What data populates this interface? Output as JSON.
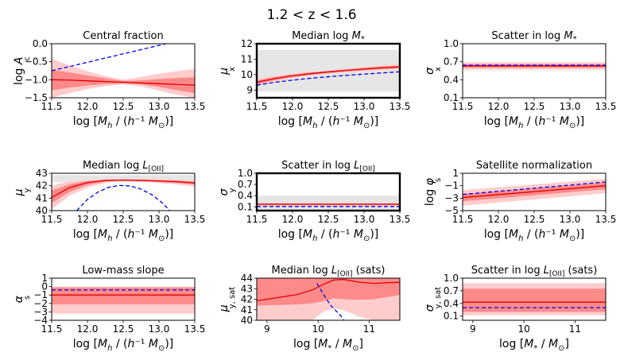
{
  "figure": {
    "suptitle": "1.2 < z < 1.6",
    "colors": {
      "median_line": "#e00000",
      "band_inner": "#ff8a8a",
      "band_outer": "#ffcccc",
      "prior_band": "#e6e6e6",
      "reference_line": "#0000ee"
    }
  },
  "chart_data": [
    {
      "type": "line",
      "id": "central_fraction",
      "title": "Central fraction",
      "ylabel": "log A_c",
      "xlabel": "log [M_h / (h⁻¹ M_⊙)]",
      "xlim": [
        11.5,
        13.5
      ],
      "ylim": [
        -1.5,
        0.0
      ],
      "xticks": [
        11.5,
        12.0,
        12.5,
        13.0,
        13.5
      ],
      "xticklabels": [
        "11.5",
        "12.0",
        "12.5",
        "13.0",
        "13.5"
      ],
      "yticks": [
        -1.5,
        -1.0,
        -0.5,
        0.0
      ],
      "yticklabels": [
        "−1.5",
        "−1.0",
        "−0.5",
        "0.0"
      ],
      "x": [
        11.5,
        11.75,
        12.0,
        12.25,
        12.5,
        12.75,
        13.0,
        13.25,
        13.5
      ],
      "median": [
        -1.0,
        -1.01,
        -1.03,
        -1.05,
        -1.07,
        -1.09,
        -1.11,
        -1.13,
        -1.15
      ],
      "inner_band": {
        "lower": [
          -1.3,
          -1.22,
          -1.16,
          -1.12,
          -1.1,
          -1.13,
          -1.2,
          -1.29,
          -1.37
        ],
        "upper": [
          -0.72,
          -0.8,
          -0.88,
          -0.96,
          -1.03,
          -1.02,
          -0.98,
          -0.95,
          -0.93
        ]
      },
      "outer_band": {
        "lower": [
          -1.5,
          -1.37,
          -1.26,
          -1.18,
          -1.13,
          -1.18,
          -1.3,
          -1.42,
          -1.5
        ],
        "upper": [
          -0.42,
          -0.6,
          -0.76,
          -0.9,
          -1.0,
          -0.92,
          -0.83,
          -0.76,
          -0.7
        ]
      },
      "prior_band": null,
      "reference": {
        "x": [
          11.5,
          13.1
        ],
        "y": [
          -0.75,
          0.0
        ]
      },
      "thick_frame": false
    },
    {
      "type": "line",
      "id": "median_log_mstar",
      "title": "Median log M*",
      "ylabel": "μ_x",
      "xlabel": "log [M_h / (h⁻¹ M_⊙)]",
      "xlim": [
        11.5,
        13.5
      ],
      "ylim": [
        8.5,
        12.0
      ],
      "xticks": [
        11.5,
        12.0,
        12.5,
        13.0,
        13.5
      ],
      "xticklabels": [
        "11.5",
        "12.0",
        "12.5",
        "13.0",
        "13.5"
      ],
      "yticks": [
        9,
        10,
        11,
        12
      ],
      "yticklabels": [
        "9",
        "10",
        "11",
        "12"
      ],
      "x": [
        11.5,
        11.75,
        12.0,
        12.25,
        12.5,
        12.75,
        13.0,
        13.25,
        13.5
      ],
      "median": [
        9.5,
        9.74,
        9.92,
        10.06,
        10.17,
        10.27,
        10.36,
        10.44,
        10.5
      ],
      "inner_band": {
        "lower": [
          9.38,
          9.64,
          9.84,
          9.99,
          10.11,
          10.21,
          10.29,
          10.36,
          10.41
        ],
        "upper": [
          9.62,
          9.84,
          10.0,
          10.13,
          10.23,
          10.33,
          10.43,
          10.52,
          10.59
        ]
      },
      "outer_band": {
        "lower": [
          9.28,
          9.56,
          9.77,
          9.93,
          10.05,
          10.15,
          10.23,
          10.29,
          10.33
        ],
        "upper": [
          9.72,
          9.93,
          10.07,
          10.19,
          10.29,
          10.39,
          10.5,
          10.6,
          10.67
        ]
      },
      "prior_band": [
        8.9,
        11.6
      ],
      "reference": {
        "x": [
          11.5,
          11.75,
          12.0,
          12.25,
          12.5,
          12.75,
          13.0,
          13.25,
          13.5
        ],
        "y": [
          9.32,
          9.5,
          9.64,
          9.76,
          9.86,
          9.95,
          10.03,
          10.11,
          10.18
        ]
      },
      "thick_frame": true
    },
    {
      "type": "line",
      "id": "scatter_log_mstar",
      "title": "Scatter in log M*",
      "ylabel": "σ_x",
      "xlabel": "log [M_h / (h⁻¹ M_⊙)]",
      "xlim": [
        11.5,
        13.5
      ],
      "ylim": [
        0.1,
        1.0
      ],
      "xticks": [
        11.5,
        12.0,
        12.5,
        13.0,
        13.5
      ],
      "xticklabels": [
        "11.5",
        "12.0",
        "12.5",
        "13.0",
        "13.5"
      ],
      "yticks": [
        0.1,
        0.4,
        0.7,
        1.0
      ],
      "yticklabels": [
        "0.1",
        "0.4",
        "0.7",
        "1.0"
      ],
      "x": [
        11.5,
        13.5
      ],
      "median": [
        0.63,
        0.63
      ],
      "inner_band": {
        "lower": [
          0.6,
          0.6
        ],
        "upper": [
          0.66,
          0.66
        ]
      },
      "outer_band": {
        "lower": [
          0.57,
          0.57
        ],
        "upper": [
          0.69,
          0.69
        ]
      },
      "prior_band": null,
      "reference": {
        "x": [
          11.5,
          13.5
        ],
        "y": [
          0.64,
          0.64
        ]
      },
      "thick_frame": false
    },
    {
      "type": "line",
      "id": "median_log_loii",
      "title": "Median log L[OII]",
      "ylabel": "μ_y",
      "xlabel": "log [M_h / (h⁻¹ M_⊙)]",
      "xlim": [
        11.5,
        13.5
      ],
      "ylim": [
        40.0,
        43.0
      ],
      "xticks": [
        11.5,
        12.0,
        12.5,
        13.0,
        13.5
      ],
      "xticklabels": [
        "11.5",
        "12.0",
        "12.5",
        "13.0",
        "13.5"
      ],
      "yticks": [
        40,
        41,
        42,
        43
      ],
      "yticklabels": [
        "40",
        "41",
        "42",
        "43"
      ],
      "x": [
        11.5,
        11.75,
        12.0,
        12.25,
        12.5,
        12.75,
        13.0,
        13.25,
        13.5
      ],
      "median": [
        41.05,
        41.85,
        42.25,
        42.42,
        42.45,
        42.42,
        42.38,
        42.32,
        42.22
      ],
      "inner_band": {
        "lower": [
          40.6,
          41.5,
          42.05,
          42.33,
          42.42,
          42.38,
          42.3,
          42.22,
          42.1
        ],
        "upper": [
          41.6,
          42.12,
          42.38,
          42.48,
          42.5,
          42.48,
          42.45,
          42.4,
          42.32
        ]
      },
      "outer_band": {
        "lower": [
          40.1,
          41.2,
          41.85,
          42.22,
          42.38,
          42.32,
          42.22,
          42.1,
          41.92
        ],
        "upper": [
          42.0,
          42.35,
          42.48,
          42.53,
          42.55,
          42.55,
          42.52,
          42.48,
          42.42
        ]
      },
      "prior_band": [
        42.28,
        42.85
      ],
      "reference": {
        "x": [
          11.85,
          12.0,
          12.15,
          12.3,
          12.45,
          12.6,
          12.75,
          12.9,
          13.05,
          13.15
        ],
        "y": [
          40.0,
          40.9,
          41.5,
          41.88,
          42.02,
          41.98,
          41.72,
          41.28,
          40.6,
          40.0
        ]
      },
      "thick_frame": false
    },
    {
      "type": "line",
      "id": "scatter_log_loii",
      "title": "Scatter in log L[OII]",
      "ylabel": "σ_y",
      "xlabel": "log [M_h / (h⁻¹ M_⊙)]",
      "xlim": [
        11.5,
        13.5
      ],
      "ylim": [
        0.0,
        1.0
      ],
      "xticks": [
        11.5,
        12.0,
        12.5,
        13.0,
        13.5
      ],
      "xticklabels": [
        "11.5",
        "12.0",
        "12.5",
        "13.0",
        "13.5"
      ],
      "yticks": [
        0.1,
        0.4,
        0.7,
        1.0
      ],
      "yticklabels": [
        "0.1",
        "0.4",
        "0.7",
        "1.0"
      ],
      "x": [
        11.5,
        13.5
      ],
      "median": [
        0.17,
        0.17
      ],
      "inner_band": {
        "lower": [
          0.15,
          0.15
        ],
        "upper": [
          0.19,
          0.19
        ]
      },
      "outer_band": {
        "lower": [
          0.13,
          0.13
        ],
        "upper": [
          0.21,
          0.21
        ]
      },
      "prior_band": [
        0.0,
        0.4
      ],
      "reference": {
        "x": [
          11.5,
          13.5
        ],
        "y": [
          0.11,
          0.11
        ]
      },
      "thick_frame": true
    },
    {
      "type": "line",
      "id": "satellite_normalization",
      "title": "Satellite normalization",
      "ylabel": "log φ_s",
      "xlabel": "log [M_h / (h⁻¹ M_⊙)]",
      "xlim": [
        11.5,
        13.5
      ],
      "ylim": [
        -5.0,
        1.0
      ],
      "xticks": [
        11.5,
        12.0,
        12.5,
        13.0,
        13.5
      ],
      "xticklabels": [
        "11.5",
        "12.0",
        "12.5",
        "13.0",
        "13.5"
      ],
      "yticks": [
        -5,
        -3,
        -1,
        1
      ],
      "yticklabels": [
        "−5",
        "−3",
        "−1",
        "1"
      ],
      "x": [
        11.5,
        13.5
      ],
      "median": [
        -2.9,
        -1.0
      ],
      "inner_band": {
        "lower": [
          -3.5,
          -1.55
        ],
        "upper": [
          -2.35,
          -0.5
        ]
      },
      "outer_band": {
        "lower": [
          -4.2,
          -2.2
        ],
        "upper": [
          -1.7,
          0.1
        ]
      },
      "prior_band": null,
      "reference": {
        "x": [
          11.5,
          13.5
        ],
        "y": [
          -2.4,
          -0.4
        ]
      },
      "thick_frame": false
    },
    {
      "type": "line",
      "id": "low_mass_slope",
      "title": "Low-mass slope",
      "ylabel": "α_s",
      "xlabel": "log [M_h / (h⁻¹ M_⊙)]",
      "xlim": [
        11.5,
        13.5
      ],
      "ylim": [
        -4.0,
        1.0
      ],
      "xticks": [
        11.5,
        12.0,
        12.5,
        13.0,
        13.5
      ],
      "xticklabels": [
        "11.5",
        "12.0",
        "12.5",
        "13.0",
        "13.5"
      ],
      "yticks": [
        -4,
        -3,
        -2,
        -1,
        0,
        1
      ],
      "yticklabels": [
        "−4",
        "−3",
        "−2",
        "−1",
        "0",
        "1"
      ],
      "x": [
        11.5,
        13.5
      ],
      "median": [
        -1.0,
        -1.0
      ],
      "inner_band": {
        "lower": [
          -2.1,
          -2.1
        ],
        "upper": [
          -0.1,
          -0.1
        ]
      },
      "outer_band": {
        "lower": [
          -3.2,
          -3.2
        ],
        "upper": [
          0.0,
          0.0
        ]
      },
      "prior_band": null,
      "reference": {
        "x": [
          11.5,
          13.5
        ],
        "y": [
          -0.4,
          -0.4
        ]
      },
      "thick_frame": false
    },
    {
      "type": "line",
      "id": "median_log_loii_sats",
      "title": "Median log L[OII] (sats)",
      "ylabel": "μ_y, sat",
      "xlabel": "log [M* / M_⊙]",
      "xlim": [
        8.8,
        11.6
      ],
      "ylim": [
        40.0,
        44.0
      ],
      "xticks": [
        9,
        10,
        11
      ],
      "xticklabels": [
        "9",
        "10",
        "11"
      ],
      "yticks": [
        40,
        41,
        42,
        43,
        44
      ],
      "yticklabels": [
        "40",
        "41",
        "42",
        "43",
        "44"
      ],
      "x": [
        8.8,
        9.2,
        9.6,
        9.9,
        10.1,
        10.3,
        10.5,
        10.8,
        11.1,
        11.4,
        11.6
      ],
      "median": [
        41.85,
        42.15,
        42.45,
        42.9,
        43.4,
        43.82,
        43.88,
        43.62,
        43.5,
        43.58,
        43.6
      ],
      "inner_band": {
        "lower": [
          41.4,
          41.45,
          41.5,
          41.62,
          41.82,
          42.08,
          42.0,
          41.95,
          42.0,
          42.25,
          42.4
        ],
        "upper": [
          44.0,
          44.0,
          44.0,
          44.0,
          44.0,
          44.0,
          44.0,
          44.0,
          44.0,
          44.0,
          44.0
        ]
      },
      "outer_band": {
        "lower": [
          40.0,
          40.0,
          40.0,
          40.05,
          40.8,
          41.15,
          40.95,
          40.35,
          40.0,
          40.0,
          40.0
        ],
        "upper": [
          44.0,
          44.0,
          44.0,
          44.0,
          44.0,
          44.0,
          44.0,
          44.0,
          44.0,
          44.0,
          44.0
        ]
      },
      "prior_band": [
        42.25,
        42.72
      ],
      "reference": {
        "x": [
          9.98,
          10.1,
          10.25,
          10.45,
          10.5
        ],
        "y": [
          43.5,
          42.5,
          41.4,
          40.4,
          40.0
        ]
      },
      "thick_frame": false
    },
    {
      "type": "line",
      "id": "scatter_log_loii_sats",
      "title": "Scatter in log L[OII] (sats)",
      "ylabel": "σ_y, sat",
      "xlabel": "log [M* / M_⊙]",
      "xlim": [
        8.8,
        11.6
      ],
      "ylim": [
        0.0,
        1.0
      ],
      "xticks": [
        9,
        10,
        11
      ],
      "xticklabels": [
        "9",
        "10",
        "11"
      ],
      "yticks": [
        0.1,
        0.4,
        0.7,
        1.0
      ],
      "yticklabels": [
        "0.1",
        "0.4",
        "0.7",
        "1.0"
      ],
      "x": [
        8.8,
        11.6
      ],
      "median": [
        0.43,
        0.43
      ],
      "inner_band": {
        "lower": [
          0.2,
          0.2
        ],
        "upper": [
          0.75,
          0.75
        ]
      },
      "outer_band": {
        "lower": [
          0.12,
          0.12
        ],
        "upper": [
          0.88,
          0.88
        ]
      },
      "prior_band": null,
      "reference": {
        "x": [
          8.8,
          11.6
        ],
        "y": [
          0.3,
          0.3
        ]
      },
      "thick_frame": false
    }
  ]
}
